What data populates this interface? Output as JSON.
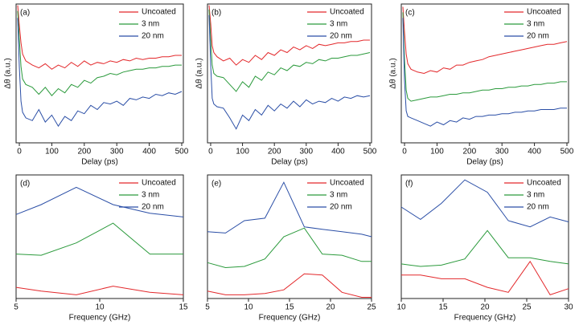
{
  "chart_data": [
    {
      "type": "line",
      "annotation": "(a)",
      "x_label": "Delay (ps)",
      "y_label": "Δθ (a.u.)",
      "x": [
        -5,
        0,
        5,
        10,
        20,
        40,
        60,
        80,
        100,
        120,
        140,
        160,
        180,
        200,
        220,
        240,
        260,
        280,
        300,
        320,
        340,
        360,
        380,
        400,
        420,
        440,
        460,
        480,
        500
      ],
      "xlim": [
        -10,
        505
      ],
      "xticks": [
        0,
        100,
        200,
        300,
        400,
        500
      ],
      "ylim": [
        0,
        10
      ],
      "legend": "upper right",
      "series": [
        {
          "name": "Uncoated",
          "color": "#e3282b",
          "values": [
            9.9,
            8.5,
            7.2,
            6.4,
            5.9,
            5.6,
            5.4,
            5.7,
            5.3,
            5.6,
            5.4,
            5.8,
            5.5,
            5.9,
            5.6,
            5.8,
            5.7,
            5.9,
            5.8,
            6.0,
            5.9,
            6.1,
            6.0,
            6.1,
            6.1,
            6.2,
            6.2,
            6.3,
            6.3
          ]
        },
        {
          "name": "3 nm",
          "color": "#2b9a3c",
          "values": [
            9.5,
            7.5,
            5.5,
            4.6,
            4.2,
            4.0,
            3.5,
            4.0,
            3.4,
            3.9,
            3.6,
            4.2,
            4.0,
            4.5,
            4.3,
            4.7,
            4.8,
            5.0,
            4.9,
            5.1,
            5.2,
            5.3,
            5.3,
            5.4,
            5.4,
            5.5,
            5.5,
            5.6,
            5.6
          ]
        },
        {
          "name": "20 nm",
          "color": "#2a4ea6",
          "values": [
            9.0,
            5.5,
            3.0,
            2.2,
            1.8,
            1.6,
            2.4,
            1.5,
            2.0,
            1.2,
            1.9,
            1.6,
            2.3,
            2.1,
            2.7,
            2.4,
            2.9,
            2.8,
            3.0,
            2.7,
            3.2,
            3.1,
            3.3,
            3.2,
            3.5,
            3.4,
            3.6,
            3.5,
            3.7
          ]
        }
      ]
    },
    {
      "type": "line",
      "annotation": "(b)",
      "x_label": "Delay (ps)",
      "y_label": "Δθ (a.u.)",
      "x": [
        -5,
        0,
        5,
        10,
        20,
        40,
        60,
        80,
        100,
        120,
        140,
        160,
        180,
        200,
        220,
        240,
        260,
        280,
        300,
        320,
        340,
        360,
        380,
        400,
        420,
        440,
        460,
        480,
        500
      ],
      "xlim": [
        -10,
        505
      ],
      "xticks": [
        0,
        100,
        200,
        300,
        400,
        500
      ],
      "ylim": [
        0,
        10
      ],
      "legend": "upper right",
      "series": [
        {
          "name": "Uncoated",
          "color": "#e3282b",
          "values": [
            9.9,
            8.6,
            7.0,
            6.5,
            6.2,
            5.9,
            6.1,
            5.6,
            6.0,
            5.8,
            6.3,
            6.0,
            6.5,
            6.3,
            6.7,
            6.5,
            6.9,
            6.7,
            7.0,
            6.8,
            7.1,
            7.0,
            7.1,
            7.2,
            7.2,
            7.3,
            7.3,
            7.4,
            7.4
          ]
        },
        {
          "name": "3 nm",
          "color": "#2b9a3c",
          "values": [
            9.6,
            7.4,
            5.6,
            5.0,
            4.8,
            4.7,
            4.2,
            3.7,
            4.4,
            4.0,
            4.8,
            4.5,
            5.1,
            4.9,
            5.4,
            5.2,
            5.6,
            5.5,
            5.8,
            5.7,
            6.0,
            5.9,
            6.1,
            6.1,
            6.2,
            6.3,
            6.3,
            6.4,
            6.5
          ]
        },
        {
          "name": "20 nm",
          "color": "#2a4ea6",
          "values": [
            9.2,
            5.6,
            3.2,
            2.8,
            2.6,
            2.5,
            1.8,
            1.0,
            2.0,
            1.6,
            2.4,
            2.0,
            2.7,
            2.3,
            2.8,
            2.5,
            3.0,
            2.6,
            3.1,
            2.8,
            3.0,
            2.9,
            3.2,
            3.0,
            3.3,
            3.2,
            3.4,
            3.3,
            3.4
          ]
        }
      ]
    },
    {
      "type": "line",
      "annotation": "(c)",
      "x_label": "Delay (ps)",
      "y_label": "Δθ (a.u.)",
      "x": [
        -5,
        0,
        5,
        10,
        20,
        40,
        60,
        80,
        100,
        120,
        140,
        160,
        180,
        200,
        220,
        240,
        260,
        280,
        300,
        320,
        340,
        360,
        380,
        400,
        420,
        440,
        460,
        480,
        500
      ],
      "xlim": [
        -10,
        505
      ],
      "xticks": [
        0,
        100,
        200,
        300,
        400,
        500
      ],
      "ylim": [
        0,
        10
      ],
      "legend": "upper right",
      "series": [
        {
          "name": "Uncoated",
          "color": "#e3282b",
          "values": [
            9.8,
            8.0,
            6.4,
            5.7,
            5.3,
            5.1,
            5.0,
            5.2,
            5.1,
            5.4,
            5.3,
            5.6,
            5.6,
            5.8,
            5.9,
            6.0,
            6.2,
            6.3,
            6.4,
            6.5,
            6.6,
            6.7,
            6.8,
            6.9,
            7.0,
            7.1,
            7.1,
            7.2,
            7.3
          ]
        },
        {
          "name": "3 nm",
          "color": "#2b9a3c",
          "values": [
            9.4,
            6.0,
            3.8,
            3.2,
            3.0,
            3.1,
            3.2,
            3.3,
            3.3,
            3.4,
            3.5,
            3.5,
            3.6,
            3.6,
            3.7,
            3.8,
            3.8,
            3.9,
            3.9,
            4.0,
            4.0,
            4.1,
            4.1,
            4.2,
            4.2,
            4.3,
            4.3,
            4.4,
            4.4
          ]
        },
        {
          "name": "20 nm",
          "color": "#2a4ea6",
          "values": [
            9.0,
            4.5,
            2.3,
            1.9,
            1.8,
            1.6,
            1.4,
            1.2,
            1.5,
            1.3,
            1.6,
            1.5,
            1.8,
            1.7,
            1.9,
            1.9,
            2.0,
            2.0,
            2.1,
            2.1,
            2.2,
            2.2,
            2.3,
            2.3,
            2.4,
            2.4,
            2.4,
            2.5,
            2.5
          ]
        }
      ]
    },
    {
      "type": "line",
      "annotation": "(d)",
      "x_label": "Frequency (GHz)",
      "x": [
        5,
        6.5,
        8.6,
        10.8,
        13,
        15
      ],
      "xlim": [
        5,
        15
      ],
      "xticks": [
        5,
        10,
        15
      ],
      "ylim": [
        0,
        10
      ],
      "legend": "upper right",
      "series": [
        {
          "name": "Uncoated",
          "color": "#e3282b",
          "values": [
            0.9,
            0.6,
            0.3,
            1.0,
            0.5,
            0.3
          ]
        },
        {
          "name": "3 nm",
          "color": "#2b9a3c",
          "values": [
            3.6,
            3.5,
            4.5,
            6.1,
            3.6,
            3.6
          ]
        },
        {
          "name": "20 nm",
          "color": "#2a4ea6",
          "values": [
            6.8,
            7.6,
            9.0,
            7.6,
            6.9,
            6.6
          ]
        }
      ]
    },
    {
      "type": "line",
      "annotation": "(e)",
      "x_label": "Frequency (GHz)",
      "x": [
        5,
        7.2,
        9.5,
        12,
        14.3,
        16.8,
        19,
        21.4,
        23.8,
        25
      ],
      "xlim": [
        5,
        25
      ],
      "xticks": [
        5,
        10,
        15,
        20,
        25
      ],
      "ylim": [
        0,
        10
      ],
      "legend": "upper right",
      "series": [
        {
          "name": "Uncoated",
          "color": "#e3282b",
          "values": [
            0.6,
            0.3,
            0.3,
            0.4,
            0.7,
            2.0,
            1.9,
            0.5,
            0.1,
            0.1
          ]
        },
        {
          "name": "3 nm",
          "color": "#2b9a3c",
          "values": [
            2.9,
            2.5,
            2.6,
            3.2,
            5.0,
            5.7,
            3.6,
            3.5,
            3.0,
            3.0
          ]
        },
        {
          "name": "20 nm",
          "color": "#2a4ea6",
          "values": [
            5.4,
            5.3,
            6.3,
            6.5,
            9.4,
            5.8,
            5.6,
            5.4,
            5.2,
            5.0
          ]
        }
      ]
    },
    {
      "type": "line",
      "annotation": "(f)",
      "x_label": "Frequency (GHz)",
      "x": [
        10,
        12.3,
        14.8,
        17.6,
        20.3,
        22.8,
        25.4,
        27.8,
        30
      ],
      "xlim": [
        10,
        30
      ],
      "xticks": [
        10,
        15,
        20,
        25,
        30
      ],
      "ylim": [
        0,
        10
      ],
      "legend": "upper right",
      "series": [
        {
          "name": "Uncoated",
          "color": "#e3282b",
          "values": [
            1.9,
            1.9,
            1.6,
            1.6,
            0.9,
            0.5,
            3.0,
            0.3,
            0.8
          ]
        },
        {
          "name": "3 nm",
          "color": "#2b9a3c",
          "values": [
            2.8,
            2.6,
            2.7,
            3.2,
            5.5,
            3.3,
            3.3,
            3.0,
            2.8
          ]
        },
        {
          "name": "20 nm",
          "color": "#2a4ea6",
          "values": [
            7.4,
            6.4,
            7.7,
            9.6,
            8.6,
            6.3,
            5.8,
            6.6,
            6.2
          ]
        }
      ]
    }
  ]
}
